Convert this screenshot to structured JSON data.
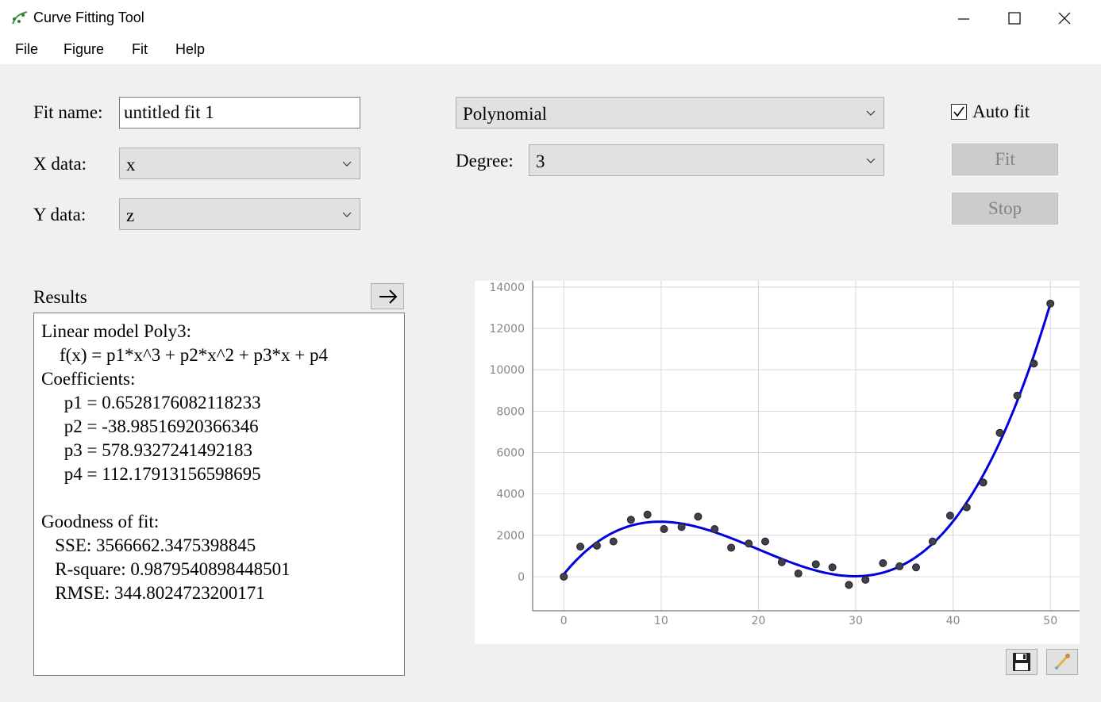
{
  "window": {
    "title": "Curve Fitting Tool",
    "app_icon": "curve-fitting-icon"
  },
  "menu": [
    "File",
    "Figure",
    "Fit",
    "Help"
  ],
  "form": {
    "fit_name_label": "Fit name:",
    "fit_name_value": "untitled fit 1",
    "x_data_label": "X data:",
    "x_data_value": "x",
    "y_data_label": "Y data:",
    "y_data_value": "z",
    "model_type": "Polynomial",
    "degree_label": "Degree:",
    "degree_value": "3",
    "auto_fit_label": "Auto fit",
    "auto_fit_checked": true,
    "fit_button": "Fit",
    "stop_button": "Stop"
  },
  "results": {
    "heading": "Results",
    "lines": [
      "Linear model Poly3:",
      "    f(x) = p1*x^3 + p2*x^2 + p3*x + p4",
      "Coefficients:",
      "     p1 = 0.6528176082118233",
      "     p2 = -38.98516920366346",
      "     p3 = 578.9327241492183",
      "     p4 = 112.17913156598695",
      "",
      "Goodness of fit:",
      "   SSE: 3566662.3475398845",
      "   R-square: 0.9879540898448501",
      "   RMSE: 344.8024723200171"
    ]
  },
  "icons": {
    "export": "arrow-right-icon",
    "save": "floppy-disk-icon",
    "tool": "brush-tool-icon"
  },
  "colors": {
    "fit_line": "#0000dd",
    "points": "#40404f"
  },
  "chart_data": {
    "type": "scatter",
    "xlim": [
      -3.2,
      53
    ],
    "ylim": [
      -1650,
      14300
    ],
    "x_ticks": [
      0,
      10,
      20,
      30,
      40,
      50
    ],
    "y_ticks": [
      0,
      2000,
      4000,
      6000,
      8000,
      10000,
      12000,
      14000
    ],
    "grid": true,
    "fit_coefficients": [
      0.6528176082118233,
      -38.98516920366346,
      578.9327241492183,
      112.17913156598695
    ],
    "points": [
      [
        0,
        0
      ],
      [
        1.7,
        1450
      ],
      [
        3.4,
        1500
      ],
      [
        5.1,
        1700
      ],
      [
        6.9,
        2750
      ],
      [
        8.6,
        3000
      ],
      [
        10.3,
        2300
      ],
      [
        12.1,
        2400
      ],
      [
        13.8,
        2900
      ],
      [
        15.5,
        2300
      ],
      [
        17.2,
        1400
      ],
      [
        19,
        1600
      ],
      [
        20.7,
        1700
      ],
      [
        22.4,
        700
      ],
      [
        24.1,
        150
      ],
      [
        25.9,
        600
      ],
      [
        27.6,
        450
      ],
      [
        29.3,
        -400
      ],
      [
        31,
        -150
      ],
      [
        32.8,
        650
      ],
      [
        34.5,
        500
      ],
      [
        36.2,
        450
      ],
      [
        37.9,
        1700
      ],
      [
        39.7,
        2950
      ],
      [
        41.4,
        3350
      ],
      [
        43.1,
        4550
      ],
      [
        44.8,
        6950
      ],
      [
        46.6,
        8750
      ],
      [
        48.3,
        10300
      ],
      [
        50,
        13200
      ]
    ]
  }
}
